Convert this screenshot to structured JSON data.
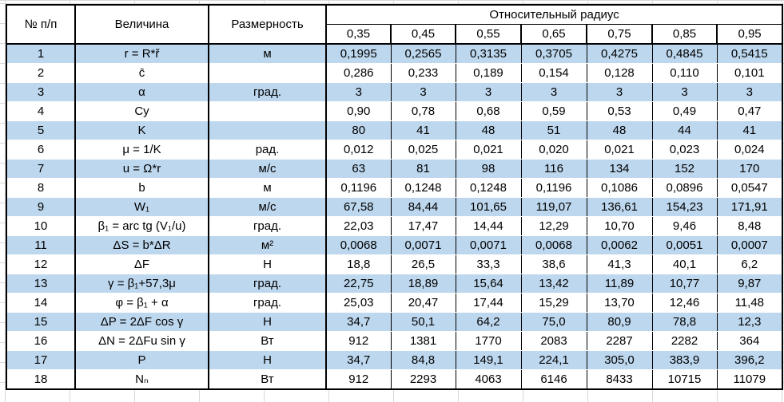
{
  "table": {
    "header": {
      "col_num": "№ п/п",
      "col_quantity": "Величина",
      "col_unit": "Размерность",
      "group": "Относительный радиус",
      "radii": [
        "0,35",
        "0,45",
        "0,55",
        "0,65",
        "0,75",
        "0,85",
        "0,95"
      ]
    },
    "rows": [
      {
        "num": "1",
        "quantity": "r = R*ř",
        "unit": "м",
        "values": [
          "0,1995",
          "0,2565",
          "0,3135",
          "0,3705",
          "0,4275",
          "0,4845",
          "0,5415"
        ]
      },
      {
        "num": "2",
        "quantity": "c̄",
        "unit": "",
        "values": [
          "0,286",
          "0,233",
          "0,189",
          "0,154",
          "0,128",
          "0,110",
          "0,101"
        ]
      },
      {
        "num": "3",
        "quantity": "α",
        "unit": "град.",
        "values": [
          "3",
          "3",
          "3",
          "3",
          "3",
          "3",
          "3"
        ]
      },
      {
        "num": "4",
        "quantity": "Cy",
        "unit": "",
        "values": [
          "0,90",
          "0,78",
          "0,68",
          "0,59",
          "0,53",
          "0,49",
          "0,47"
        ]
      },
      {
        "num": "5",
        "quantity": "K",
        "unit": "",
        "values": [
          "80",
          "41",
          "48",
          "51",
          "48",
          "44",
          "41"
        ]
      },
      {
        "num": "6",
        "quantity": "μ = 1/K",
        "unit": "рад.",
        "values": [
          "0,012",
          "0,025",
          "0,021",
          "0,020",
          "0,021",
          "0,023",
          "0,024"
        ]
      },
      {
        "num": "7",
        "quantity": "u = Ω*r",
        "unit": "м/с",
        "values": [
          "63",
          "81",
          "98",
          "116",
          "134",
          "152",
          "170"
        ]
      },
      {
        "num": "8",
        "quantity": "b",
        "unit": "м",
        "values": [
          "0,1196",
          "0,1248",
          "0,1248",
          "0,1196",
          "0,1086",
          "0,0896",
          "0,0547"
        ]
      },
      {
        "num": "9",
        "quantity": "W₁",
        "unit": "м/с",
        "values": [
          "67,58",
          "84,44",
          "101,65",
          "119,07",
          "136,61",
          "154,23",
          "171,91"
        ]
      },
      {
        "num": "10",
        "quantity": "β₁ = arc tg (V₁/u)",
        "unit": "град.",
        "values": [
          "22,03",
          "17,47",
          "14,44",
          "12,29",
          "10,70",
          "9,46",
          "8,48"
        ]
      },
      {
        "num": "11",
        "quantity": "ΔS = b*ΔR",
        "unit": "м²",
        "values": [
          "0,0068",
          "0,0071",
          "0,0071",
          "0,0068",
          "0,0062",
          "0,0051",
          "0,0007"
        ]
      },
      {
        "num": "12",
        "quantity": "ΔF",
        "unit": "Н",
        "values": [
          "18,8",
          "26,5",
          "33,3",
          "38,6",
          "41,3",
          "40,1",
          "6,2"
        ]
      },
      {
        "num": "13",
        "quantity": "γ = β₁+57,3μ",
        "unit": "град.",
        "values": [
          "22,75",
          "18,89",
          "15,64",
          "13,42",
          "11,89",
          "10,77",
          "9,87"
        ]
      },
      {
        "num": "14",
        "quantity": "φ = β₁ + α",
        "unit": "град.",
        "values": [
          "25,03",
          "20,47",
          "17,44",
          "15,29",
          "13,70",
          "12,46",
          "11,48"
        ]
      },
      {
        "num": "15",
        "quantity": "ΔP = 2ΔF cos γ",
        "unit": "Н",
        "values": [
          "34,7",
          "50,1",
          "64,2",
          "75,0",
          "80,9",
          "78,8",
          "12,3"
        ]
      },
      {
        "num": "16",
        "quantity": "ΔN = 2ΔFu sin γ",
        "unit": "Вт",
        "values": [
          "912",
          "1381",
          "1770",
          "2083",
          "2287",
          "2282",
          "364"
        ]
      },
      {
        "num": "17",
        "quantity": "P",
        "unit": "Н",
        "values": [
          "34,7",
          "84,8",
          "149,1",
          "224,1",
          "305,0",
          "383,9",
          "396,2"
        ]
      },
      {
        "num": "18",
        "quantity": "Nₙ",
        "unit": "Вт",
        "values": [
          "912",
          "2293",
          "4063",
          "6146",
          "8433",
          "10715",
          "11079"
        ]
      }
    ],
    "colors": {
      "band_blue": "#BDD7EE",
      "band_white": "#FFFFFF",
      "border_black": "#000000",
      "gridline_gray": "#D8D8D8"
    }
  }
}
